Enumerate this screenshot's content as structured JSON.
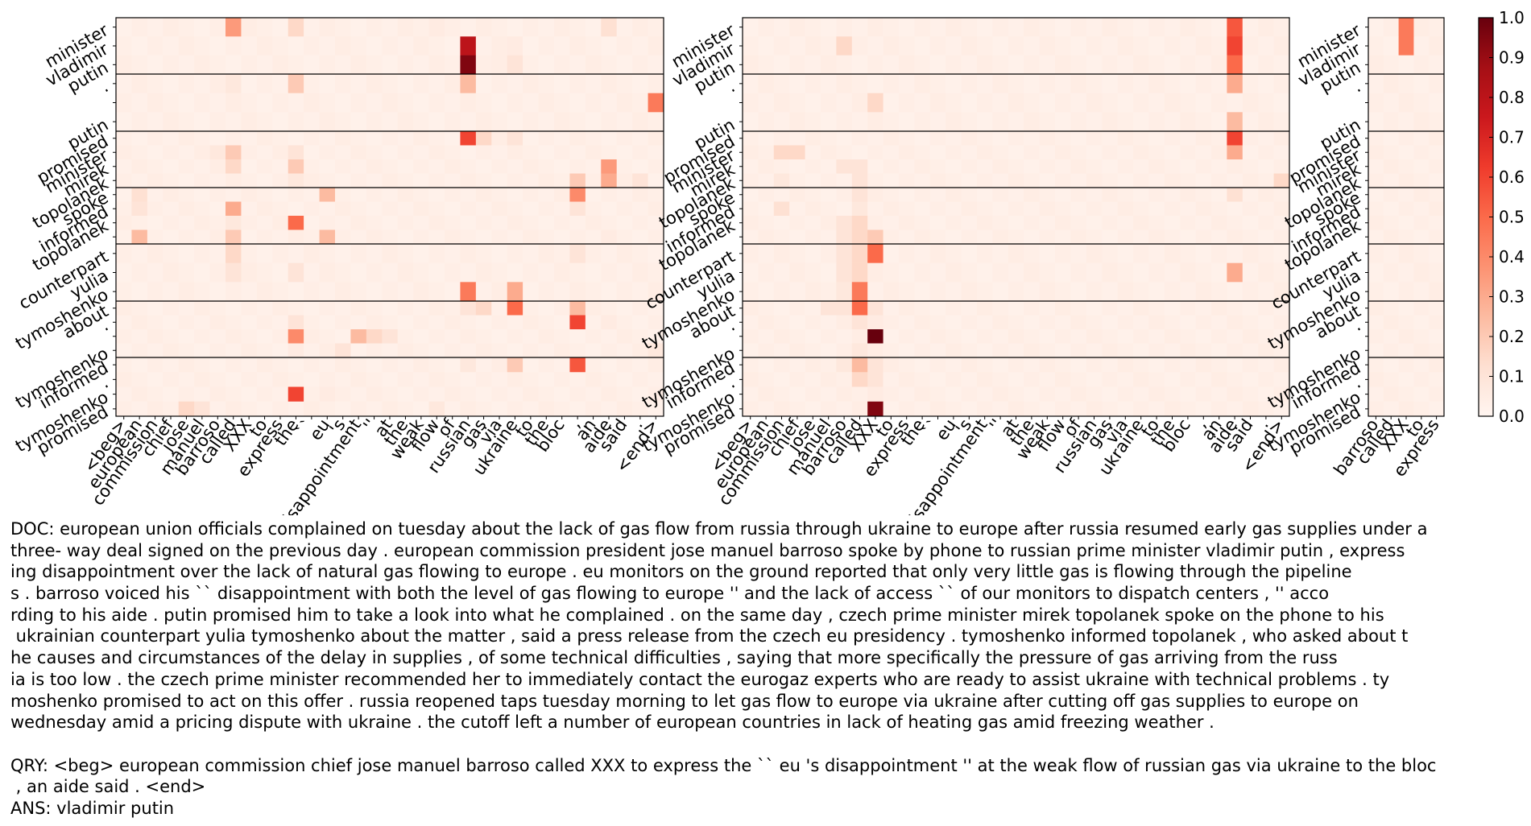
{
  "chart_data": {
    "type": "heatmap",
    "colormap": "Reds",
    "colorbar": {
      "min": 0.0,
      "max": 1.0,
      "ticks": [
        "0.0",
        "0.1",
        "0.2",
        "0.3",
        "0.4",
        "0.5",
        "0.6",
        "0.7",
        "0.8",
        "0.9",
        "1.0"
      ]
    },
    "row_groups": [
      [
        "minister",
        "vladimir",
        "putin"
      ],
      [
        ".",
        "",
        "putin"
      ],
      [
        "promised",
        "minister",
        "mirek",
        "topolanek"
      ],
      [
        "spoke",
        "informed",
        "topolanek",
        ""
      ],
      [
        "counterpart",
        "yulia",
        "tymoshenko"
      ],
      [
        "about",
        ".",
        "",
        "tymoshenko"
      ],
      [
        "informed",
        ".",
        "tymoshenko",
        "promised"
      ]
    ],
    "panels": [
      {
        "name": "left",
        "columns": [
          "<beg>",
          "european",
          "commission",
          "chief",
          "jose",
          "manuel",
          "barroso",
          "called",
          "XXX",
          "to",
          "express",
          "the",
          "``",
          "eu",
          "'s",
          "disappointment",
          "''",
          "at",
          "the",
          "weak",
          "flow",
          "of",
          "russian",
          "gas",
          "via",
          "ukraine",
          "to",
          "the",
          "bloc",
          ",",
          "an",
          "aide",
          "said",
          ".",
          "<end>"
        ],
        "highlights": [
          {
            "row": 0,
            "col": 7,
            "value": 0.35
          },
          {
            "row": 0,
            "col": 11,
            "value": 0.15
          },
          {
            "row": 0,
            "col": 20,
            "value": 0.06
          },
          {
            "row": 0,
            "col": 28,
            "value": 0.05
          },
          {
            "row": 0,
            "col": 31,
            "value": 0.12
          },
          {
            "row": 1,
            "col": 22,
            "value": 0.8
          },
          {
            "row": 1,
            "col": 25,
            "value": 0.06
          },
          {
            "row": 2,
            "col": 22,
            "value": 0.95
          },
          {
            "row": 2,
            "col": 24,
            "value": 0.05
          },
          {
            "row": 2,
            "col": 25,
            "value": 0.1
          },
          {
            "row": 3,
            "col": 11,
            "value": 0.2
          },
          {
            "row": 3,
            "col": 7,
            "value": 0.08
          },
          {
            "row": 3,
            "col": 22,
            "value": 0.25
          },
          {
            "row": 4,
            "col": 34,
            "value": 0.45
          },
          {
            "row": 4,
            "col": 32,
            "value": 0.05
          },
          {
            "row": 6,
            "col": 22,
            "value": 0.6
          },
          {
            "row": 6,
            "col": 23,
            "value": 0.15
          },
          {
            "row": 6,
            "col": 25,
            "value": 0.1
          },
          {
            "row": 7,
            "col": 7,
            "value": 0.2
          },
          {
            "row": 7,
            "col": 11,
            "value": 0.1
          },
          {
            "row": 7,
            "col": 6,
            "value": 0.08
          },
          {
            "row": 8,
            "col": 7,
            "value": 0.15
          },
          {
            "row": 8,
            "col": 11,
            "value": 0.2
          },
          {
            "row": 8,
            "col": 31,
            "value": 0.35
          },
          {
            "row": 9,
            "col": 11,
            "value": 0.08
          },
          {
            "row": 9,
            "col": 31,
            "value": 0.3
          },
          {
            "row": 9,
            "col": 29,
            "value": 0.2
          },
          {
            "row": 9,
            "col": 33,
            "value": 0.1
          },
          {
            "row": 10,
            "col": 1,
            "value": 0.12
          },
          {
            "row": 10,
            "col": 13,
            "value": 0.25
          },
          {
            "row": 10,
            "col": 29,
            "value": 0.4
          },
          {
            "row": 11,
            "col": 7,
            "value": 0.3
          },
          {
            "row": 11,
            "col": 1,
            "value": 0.1
          },
          {
            "row": 11,
            "col": 29,
            "value": 0.1
          },
          {
            "row": 12,
            "col": 11,
            "value": 0.5
          },
          {
            "row": 12,
            "col": 7,
            "value": 0.08
          },
          {
            "row": 13,
            "col": 1,
            "value": 0.25
          },
          {
            "row": 13,
            "col": 7,
            "value": 0.2
          },
          {
            "row": 13,
            "col": 13,
            "value": 0.25
          },
          {
            "row": 13,
            "col": 31,
            "value": 0.06
          },
          {
            "row": 14,
            "col": 7,
            "value": 0.15
          },
          {
            "row": 14,
            "col": 29,
            "value": 0.1
          },
          {
            "row": 15,
            "col": 7,
            "value": 0.1
          },
          {
            "row": 15,
            "col": 11,
            "value": 0.1
          },
          {
            "row": 16,
            "col": 22,
            "value": 0.45
          },
          {
            "row": 16,
            "col": 25,
            "value": 0.3
          },
          {
            "row": 17,
            "col": 23,
            "value": 0.15
          },
          {
            "row": 17,
            "col": 25,
            "value": 0.5
          },
          {
            "row": 17,
            "col": 29,
            "value": 0.25
          },
          {
            "row": 17,
            "col": 22,
            "value": 0.1
          },
          {
            "row": 18,
            "col": 29,
            "value": 0.6
          },
          {
            "row": 18,
            "col": 11,
            "value": 0.1
          },
          {
            "row": 18,
            "col": 31,
            "value": 0.06
          },
          {
            "row": 19,
            "col": 11,
            "value": 0.4
          },
          {
            "row": 19,
            "col": 15,
            "value": 0.25
          },
          {
            "row": 19,
            "col": 16,
            "value": 0.15
          },
          {
            "row": 19,
            "col": 17,
            "value": 0.1
          },
          {
            "row": 20,
            "col": 11,
            "value": 0.06
          },
          {
            "row": 20,
            "col": 14,
            "value": 0.1
          },
          {
            "row": 20,
            "col": 34,
            "value": 0.08
          },
          {
            "row": 21,
            "col": 22,
            "value": 0.08
          },
          {
            "row": 21,
            "col": 25,
            "value": 0.2
          },
          {
            "row": 21,
            "col": 29,
            "value": 0.55
          },
          {
            "row": 23,
            "col": 11,
            "value": 0.6
          },
          {
            "row": 23,
            "col": 13,
            "value": 0.06
          },
          {
            "row": 24,
            "col": 4,
            "value": 0.15
          },
          {
            "row": 24,
            "col": 5,
            "value": 0.1
          },
          {
            "row": 24,
            "col": 20,
            "value": 0.08
          },
          {
            "row": 25,
            "col": 25,
            "value": 0.25
          },
          {
            "row": 25,
            "col": 29,
            "value": 0.55
          },
          {
            "row": 26,
            "col": 7,
            "value": 0.25
          },
          {
            "row": 26,
            "col": 13,
            "value": 0.1
          },
          {
            "row": 26,
            "col": 29,
            "value": 0.2
          },
          {
            "row": 26,
            "col": 6,
            "value": 0.06
          }
        ]
      },
      {
        "name": "middle",
        "columns": [
          "<beg>",
          "european",
          "commission",
          "chief",
          "jose",
          "manuel",
          "barroso",
          "called",
          "XXX",
          "to",
          "express",
          "the",
          "``",
          "eu",
          "'s",
          "disappointment",
          "''",
          "at",
          "the",
          "weak",
          "flow",
          "of",
          "russian",
          "gas",
          "via",
          "ukraine",
          "to",
          "the",
          "bloc",
          ",",
          "an",
          "aide",
          "said",
          ".",
          "<end>"
        ],
        "highlights": [
          {
            "row": 0,
            "col": 31,
            "value": 0.55
          },
          {
            "row": 1,
            "col": 31,
            "value": 0.6
          },
          {
            "row": 1,
            "col": 6,
            "value": 0.15
          },
          {
            "row": 2,
            "col": 31,
            "value": 0.5
          },
          {
            "row": 3,
            "col": 31,
            "value": 0.3
          },
          {
            "row": 4,
            "col": 8,
            "value": 0.15
          },
          {
            "row": 5,
            "col": 31,
            "value": 0.25
          },
          {
            "row": 6,
            "col": 31,
            "value": 0.6
          },
          {
            "row": 7,
            "col": 2,
            "value": 0.15
          },
          {
            "row": 7,
            "col": 3,
            "value": 0.15
          },
          {
            "row": 7,
            "col": 31,
            "value": 0.3
          },
          {
            "row": 8,
            "col": 6,
            "value": 0.1
          },
          {
            "row": 8,
            "col": 7,
            "value": 0.1
          },
          {
            "row": 9,
            "col": 2,
            "value": 0.08
          },
          {
            "row": 9,
            "col": 7,
            "value": 0.1
          },
          {
            "row": 9,
            "col": 34,
            "value": 0.15
          },
          {
            "row": 10,
            "col": 7,
            "value": 0.1
          },
          {
            "row": 10,
            "col": 31,
            "value": 0.12
          },
          {
            "row": 11,
            "col": 2,
            "value": 0.12
          },
          {
            "row": 11,
            "col": 7,
            "value": 0.08
          },
          {
            "row": 12,
            "col": 6,
            "value": 0.1
          },
          {
            "row": 12,
            "col": 7,
            "value": 0.15
          },
          {
            "row": 13,
            "col": 6,
            "value": 0.1
          },
          {
            "row": 13,
            "col": 7,
            "value": 0.15
          },
          {
            "row": 13,
            "col": 8,
            "value": 0.2
          },
          {
            "row": 14,
            "col": 8,
            "value": 0.5
          },
          {
            "row": 14,
            "col": 6,
            "value": 0.1
          },
          {
            "row": 14,
            "col": 7,
            "value": 0.15
          },
          {
            "row": 15,
            "col": 6,
            "value": 0.1
          },
          {
            "row": 15,
            "col": 7,
            "value": 0.15
          },
          {
            "row": 15,
            "col": 31,
            "value": 0.3
          },
          {
            "row": 16,
            "col": 6,
            "value": 0.08
          },
          {
            "row": 16,
            "col": 7,
            "value": 0.45
          },
          {
            "row": 17,
            "col": 5,
            "value": 0.1
          },
          {
            "row": 17,
            "col": 6,
            "value": 0.1
          },
          {
            "row": 17,
            "col": 7,
            "value": 0.5
          },
          {
            "row": 17,
            "col": 8,
            "value": 0.1
          },
          {
            "row": 18,
            "col": 7,
            "value": 0.1
          },
          {
            "row": 18,
            "col": 8,
            "value": 0.06
          },
          {
            "row": 19,
            "col": 8,
            "value": 1.0
          },
          {
            "row": 20,
            "col": 7,
            "value": 0.08
          },
          {
            "row": 21,
            "col": 7,
            "value": 0.25
          },
          {
            "row": 21,
            "col": 8,
            "value": 0.1
          },
          {
            "row": 21,
            "col": 6,
            "value": 0.08
          },
          {
            "row": 22,
            "col": 7,
            "value": 0.15
          },
          {
            "row": 22,
            "col": 8,
            "value": 0.1
          },
          {
            "row": 23,
            "col": 8,
            "value": 0.06
          },
          {
            "row": 24,
            "col": 8,
            "value": 0.95
          },
          {
            "row": 25,
            "col": 7,
            "value": 0.08
          },
          {
            "row": 25,
            "col": 25,
            "value": 0.25
          },
          {
            "row": 26,
            "col": 7,
            "value": 0.3
          },
          {
            "row": 26,
            "col": 3,
            "value": 0.08
          },
          {
            "row": 26,
            "col": 5,
            "value": 0.12
          },
          {
            "row": 26,
            "col": 6,
            "value": 0.08
          }
        ]
      },
      {
        "name": "right",
        "columns": [
          "barroso",
          "called",
          "XXX",
          "to",
          "express"
        ],
        "highlights": [
          {
            "row": 0,
            "col": 2,
            "value": 0.45
          },
          {
            "row": 1,
            "col": 2,
            "value": 0.45
          }
        ]
      }
    ]
  },
  "text": {
    "doc_lines": [
      "DOC: european union officials complained on tuesday about the lack of gas flow from russia through ukraine to europe after russia resumed early gas supplies under a",
      "three- way deal signed on the previous day . european commission president jose manuel barroso spoke by phone to russian prime minister vladimir putin , express",
      "ing disappointment over the lack of natural gas flowing to europe . eu monitors on the ground reported that only very little gas is flowing through the pipeline",
      "s . barroso voiced his `` disappointment with both the level of gas flowing to europe '' and the lack of access `` of our monitors to dispatch centers , '' acco",
      "rding to his aide . putin promised him to take a look into what he complained . on the same day , czech prime minister mirek topolanek spoke on the phone to his",
      " ukrainian counterpart yulia tymoshenko about the matter , said a press release from the czech eu presidency . tymoshenko informed topolanek , who asked about t",
      "he causes and circumstances of the delay in supplies , of some technical difficulties , saying that more specifically the pressure of gas arriving from the russ",
      "ia is too low . the czech prime minister recommended her to immediately contact the eurogaz experts who are ready to assist ukraine with technical problems . ty",
      "moshenko promised to act on this offer . russia reopened taps tuesday morning to let gas flow to europe via ukraine after cutting off gas supplies to europe on",
      "wednesday amid a pricing dispute with ukraine . the cutoff left a number of european countries in lack of heating gas amid freezing weather ."
    ],
    "qry_lines": [
      "QRY: <beg> european commission chief jose manuel barroso called XXX to express the `` eu 's disappointment '' at the weak flow of russian gas via ukraine to the bloc",
      " , an aide said . <end>"
    ],
    "ans_line": "ANS: vladimir putin"
  }
}
